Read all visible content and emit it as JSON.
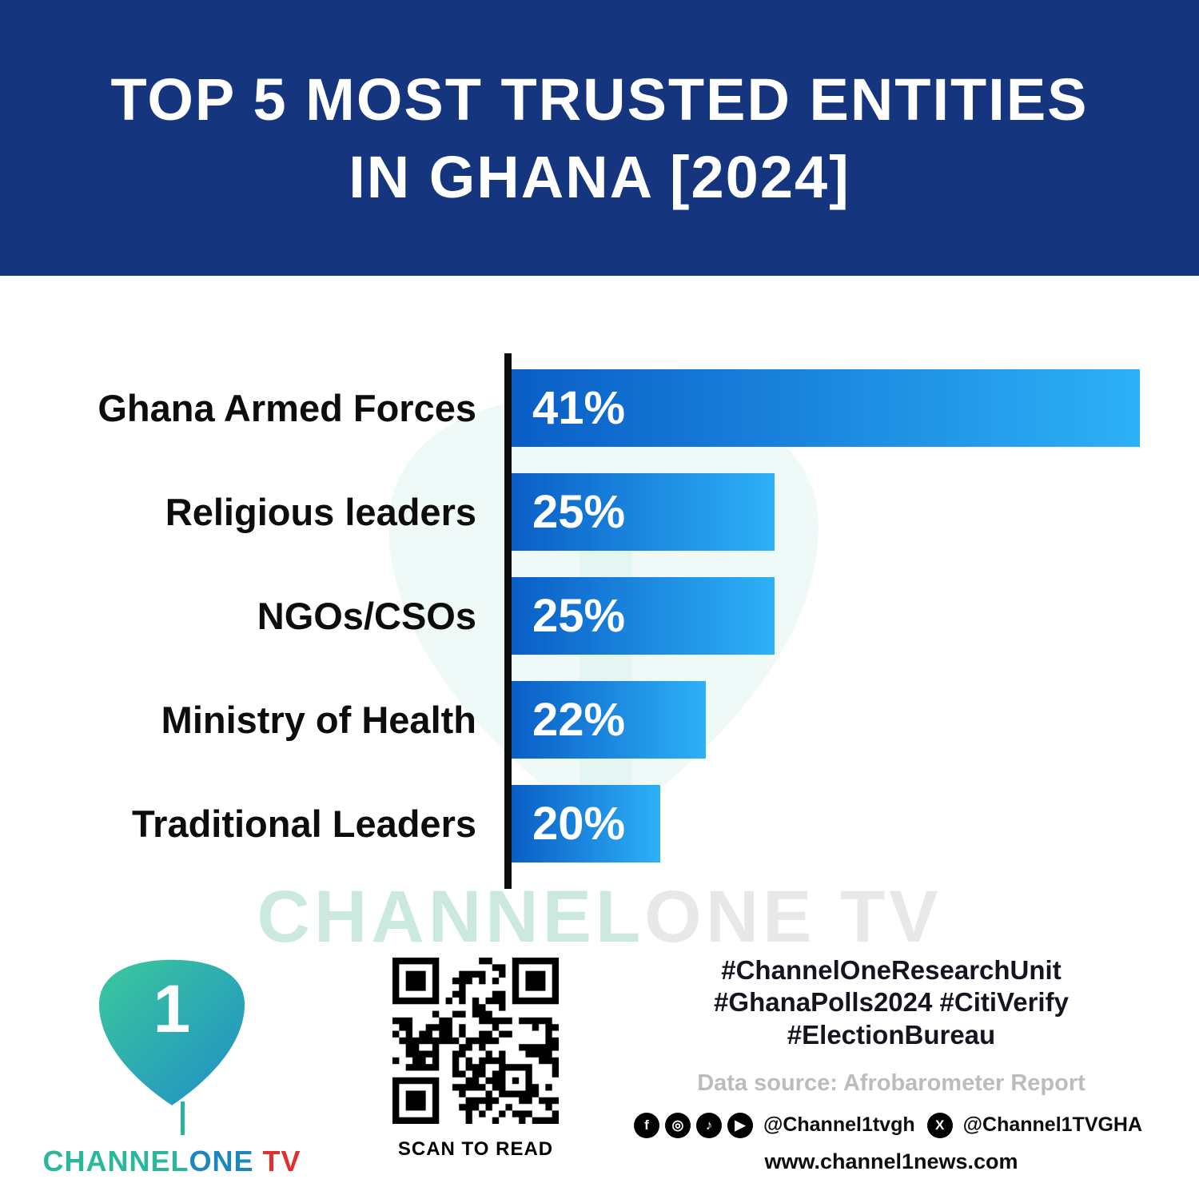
{
  "header": {
    "title_line1": "TOP 5 MOST TRUSTED ENTITIES",
    "title_line2": "IN GHANA [2024]",
    "bg_color": "#15357e",
    "text_color": "#ffffff"
  },
  "chart_data": {
    "type": "bar",
    "orientation": "horizontal",
    "title": "TOP 5 MOST TRUSTED ENTITIES IN GHANA [2024]",
    "categories": [
      "Ghana Armed Forces",
      "Religious leaders",
      "NGOs/CSOs",
      "Ministry of Health",
      "Traditional Leaders"
    ],
    "values": [
      41,
      25,
      25,
      22,
      20
    ],
    "value_labels": [
      "41%",
      "25%",
      "25%",
      "22%",
      "20%"
    ],
    "unit": "%",
    "x_axis_effective_range": [
      13.5,
      41.5
    ],
    "bar_color_start": "#0a5ec6",
    "bar_color_end": "#2db1f7",
    "axis_color": "#0c0c0c",
    "grid": false,
    "legend": false
  },
  "watermark": {
    "part1": "CHANNEL",
    "part2": "ONE TV"
  },
  "footer": {
    "logo": {
      "digit": "1",
      "brand_part1": "CHANNEL",
      "brand_part2": "ONE",
      "brand_part3": " TV",
      "accent_teal": "#2ab3a0",
      "accent_red": "#e0312e"
    },
    "qr_caption": "SCAN TO READ",
    "hashtags_line1": "#ChannelOneResearchUnit",
    "hashtags_line2": "#GhanaPolls2024 #CitiVerify",
    "hashtags_line3": "#ElectionBureau",
    "data_source": "Data source: Afrobarometer Report",
    "social": {
      "handle_main": "@Channel1tvgh",
      "handle_x": "@Channel1TVGHA"
    },
    "website": "www.channel1news.com"
  }
}
